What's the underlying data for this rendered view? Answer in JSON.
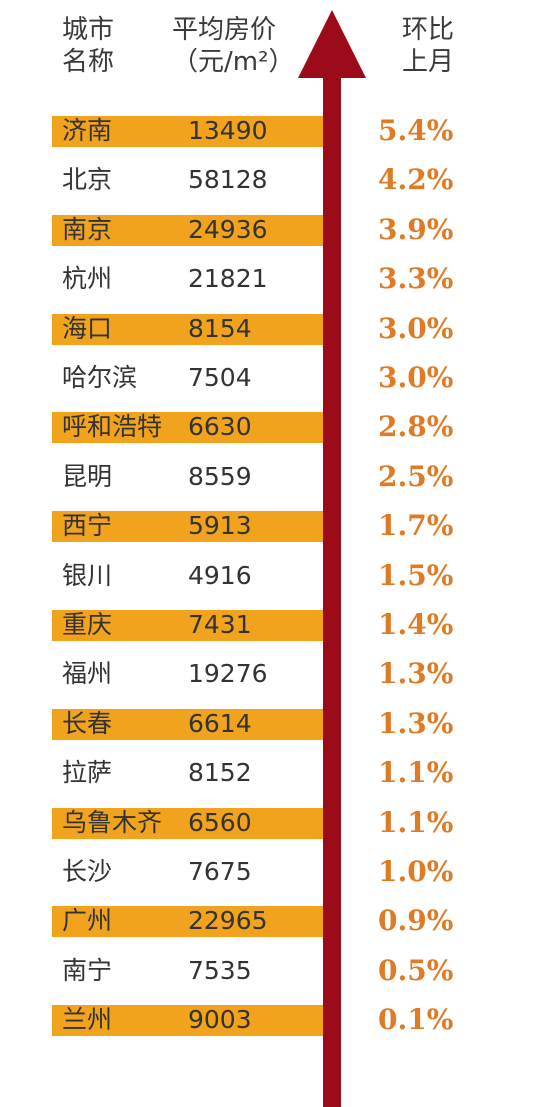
{
  "header": {
    "city_line1": "城市",
    "city_line2": "名称",
    "price_line1": "平均房价",
    "price_line2": "（元/m²）",
    "change_line1": "环比",
    "change_line2": "上月"
  },
  "colors": {
    "band": "#f2a31e",
    "percent": "#e07b25",
    "arrow": "#9b0b1a"
  },
  "icons": {
    "arrow": "up-arrow-icon"
  },
  "rows": [
    {
      "city": "济南",
      "price": "13490",
      "change": "5.4%",
      "highlight": true
    },
    {
      "city": "北京",
      "price": "58128",
      "change": "4.2%",
      "highlight": false
    },
    {
      "city": "南京",
      "price": "24936",
      "change": "3.9%",
      "highlight": true
    },
    {
      "city": "杭州",
      "price": "21821",
      "change": "3.3%",
      "highlight": false
    },
    {
      "city": "海口",
      "price": "8154",
      "change": "3.0%",
      "highlight": true
    },
    {
      "city": "哈尔滨",
      "price": "7504",
      "change": "3.0%",
      "highlight": false
    },
    {
      "city": "呼和浩特",
      "price": "6630",
      "change": "2.8%",
      "highlight": true
    },
    {
      "city": "昆明",
      "price": "8559",
      "change": "2.5%",
      "highlight": false
    },
    {
      "city": "西宁",
      "price": "5913",
      "change": "1.7%",
      "highlight": true
    },
    {
      "city": "银川",
      "price": "4916",
      "change": "1.5%",
      "highlight": false
    },
    {
      "city": "重庆",
      "price": "7431",
      "change": "1.4%",
      "highlight": true
    },
    {
      "city": "福州",
      "price": "19276",
      "change": "1.3%",
      "highlight": false
    },
    {
      "city": "长春",
      "price": "6614",
      "change": "1.3%",
      "highlight": true
    },
    {
      "city": "拉萨",
      "price": "8152",
      "change": "1.1%",
      "highlight": false
    },
    {
      "city": "乌鲁木齐",
      "price": "6560",
      "change": "1.1%",
      "highlight": true
    },
    {
      "city": "长沙",
      "price": "7675",
      "change": "1.0%",
      "highlight": false
    },
    {
      "city": "广州",
      "price": "22965",
      "change": "0.9%",
      "highlight": true
    },
    {
      "city": "南宁",
      "price": "7535",
      "change": "0.5%",
      "highlight": false
    },
    {
      "city": "兰州",
      "price": "9003",
      "change": "0.1%",
      "highlight": true
    }
  ]
}
